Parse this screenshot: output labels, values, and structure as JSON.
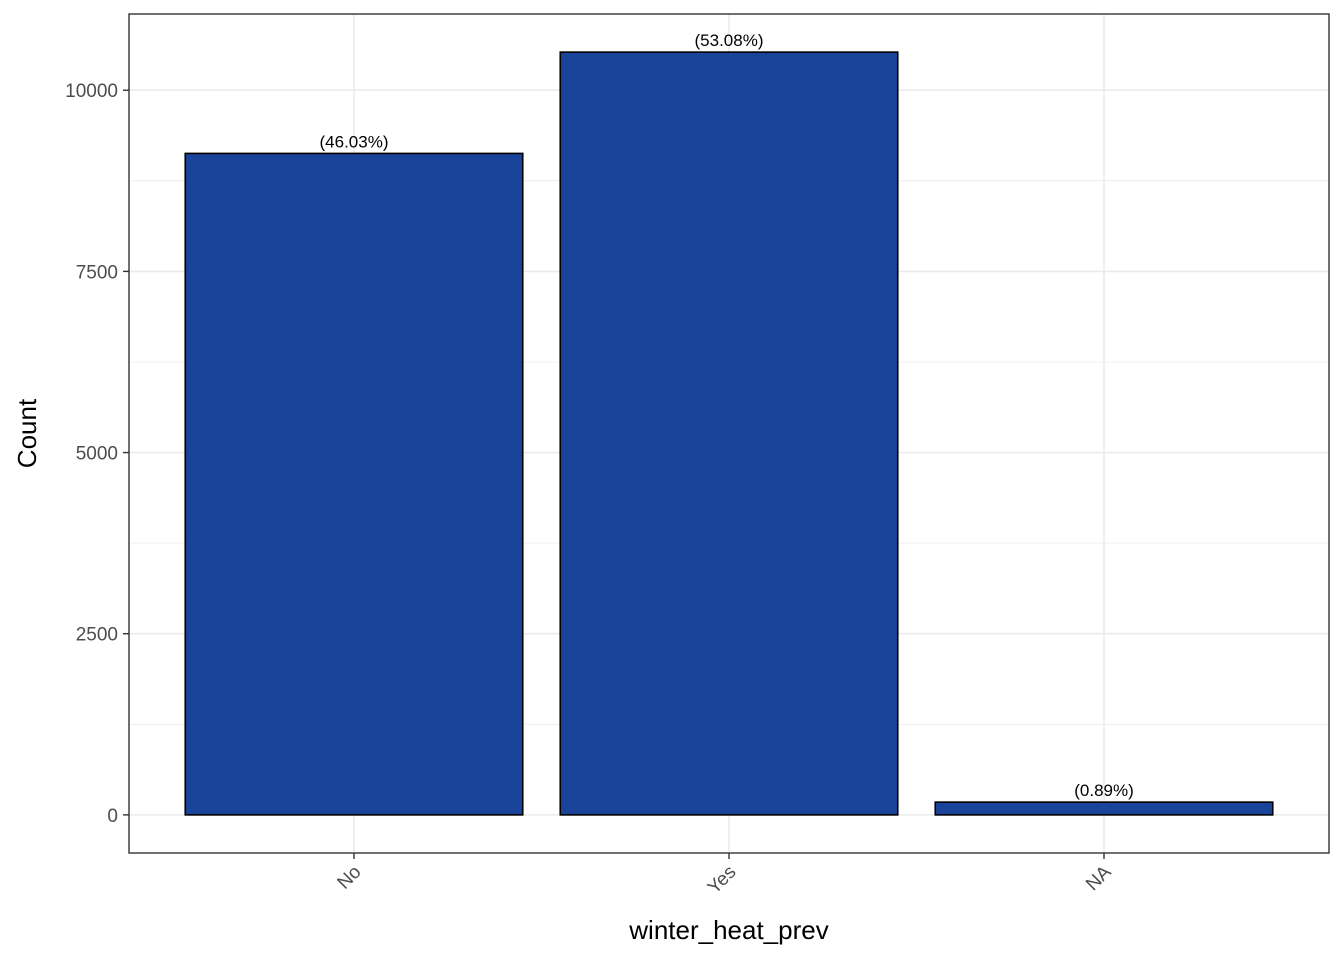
{
  "chart_data": {
    "type": "bar",
    "categories": [
      "No",
      "Yes",
      "NA"
    ],
    "values": [
      9128,
      10526,
      176
    ],
    "labels": [
      "(46.03%)",
      "(53.08%)",
      "(0.89%)"
    ],
    "xlabel": "winter_heat_prev",
    "ylabel": "Count",
    "ylim": [
      -526,
      11052
    ],
    "yticks": [
      0,
      2500,
      5000,
      7500,
      10000
    ],
    "grid": true,
    "colors": {
      "bar_fill": "#1a4499",
      "bar_stroke": "#000000",
      "grid": "#ebebeb",
      "panel_border": "#333333",
      "background": "#ffffff"
    }
  }
}
